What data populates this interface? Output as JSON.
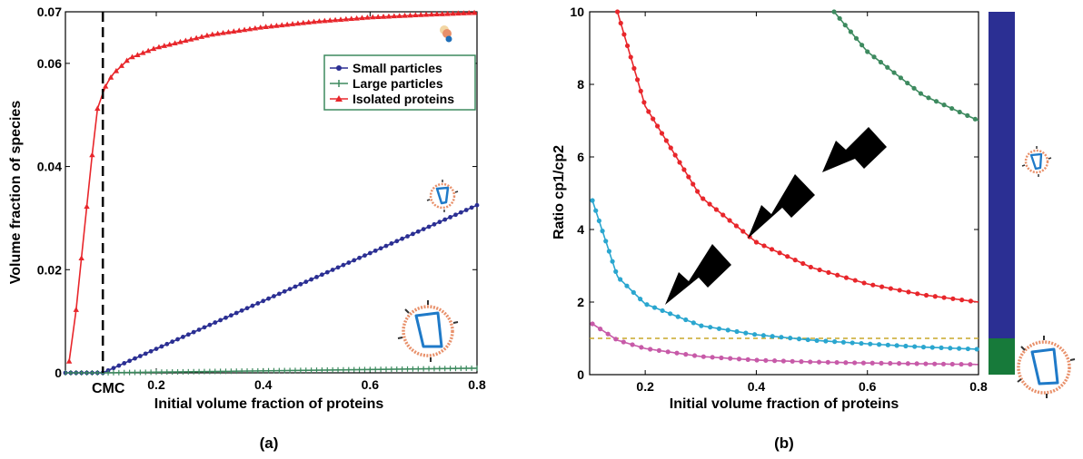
{
  "chart_data": [
    {
      "type": "line",
      "panel_label": "(a)",
      "xlabel": "Initial volume fraction of proteins",
      "ylabel": "Volume fraction of species",
      "xlim": [
        0.03,
        0.8
      ],
      "ylim": [
        0,
        0.07
      ],
      "xticks": [
        {
          "v": 0.2,
          "label": "0.2"
        },
        {
          "v": 0.4,
          "label": "0.4"
        },
        {
          "v": 0.6,
          "label": "0.6"
        },
        {
          "v": 0.8,
          "label": "0.8"
        }
      ],
      "yticks": [
        {
          "v": 0,
          "label": "0"
        },
        {
          "v": 0.02,
          "label": "0.02"
        },
        {
          "v": 0.04,
          "label": "0.04"
        },
        {
          "v": 0.06,
          "label": "0.06"
        },
        {
          "v": 0.07,
          "label": "0.07"
        }
      ],
      "cmc": {
        "x": 0.1,
        "label": "CMC"
      },
      "legend_position": "upper-right",
      "colors": {
        "small": "#2b2f93",
        "large": "#3d8a5f",
        "isolated": "#e8262b",
        "cmc": "#000000"
      },
      "series": [
        {
          "key": "small",
          "name": "Small particles",
          "x": [
            0.03,
            0.1,
            0.8
          ],
          "y": [
            0.0,
            0.0,
            0.0325
          ]
        },
        {
          "key": "large",
          "name": "Large particles",
          "x": [
            0.03,
            0.1,
            0.8
          ],
          "y": [
            0.0,
            0.0,
            0.0009
          ]
        },
        {
          "key": "isolated",
          "name": "Isolated proteins",
          "x": [
            0.037,
            0.05,
            0.06,
            0.07,
            0.08,
            0.09,
            0.1,
            0.105,
            0.11,
            0.12,
            0.13,
            0.15,
            0.2,
            0.3,
            0.4,
            0.5,
            0.6,
            0.7,
            0.8
          ],
          "y": [
            0.0022,
            0.0122,
            0.0222,
            0.0322,
            0.0422,
            0.0512,
            0.0542,
            0.0555,
            0.0565,
            0.058,
            0.059,
            0.061,
            0.063,
            0.0655,
            0.067,
            0.0681,
            0.0689,
            0.0694,
            0.0698
          ]
        }
      ]
    },
    {
      "type": "line",
      "panel_label": "(b)",
      "xlabel": "Initial volume fraction of proteins",
      "ylabel": "Ratio cp1/cp2",
      "xlim": [
        0.1,
        0.8
      ],
      "ylim": [
        0,
        10
      ],
      "xticks": [
        {
          "v": 0.2,
          "label": "0.2"
        },
        {
          "v": 0.4,
          "label": "0.4"
        },
        {
          "v": 0.6,
          "label": "0.6"
        },
        {
          "v": 0.8,
          "label": "0.8"
        }
      ],
      "yticks": [
        {
          "v": 0,
          "label": "0"
        },
        {
          "v": 2,
          "label": "2"
        },
        {
          "v": 4,
          "label": "4"
        },
        {
          "v": 6,
          "label": "6"
        },
        {
          "v": 8,
          "label": "8"
        },
        {
          "v": 10,
          "label": "10"
        }
      ],
      "reference_line_y": 1,
      "colors": {
        "s1": "#3d8a5f",
        "s2": "#e8262b",
        "s3": "#2aa6cf",
        "s4": "#c75aa8",
        "ref": "#c8a82a",
        "bar_upper": "#2b2f93",
        "bar_lower": "#177a3a",
        "arrow": "#000000"
      },
      "series": [
        {
          "key": "s1",
          "x": [
            0.54,
            0.6,
            0.7,
            0.8
          ],
          "y": [
            10.0,
            8.9,
            7.7,
            7.0
          ]
        },
        {
          "key": "s2",
          "x": [
            0.15,
            0.2,
            0.3,
            0.4,
            0.5,
            0.6,
            0.7,
            0.8
          ],
          "y": [
            10.0,
            7.4,
            4.9,
            3.65,
            2.95,
            2.5,
            2.2,
            2.0
          ]
        },
        {
          "key": "s3",
          "x": [
            0.105,
            0.15,
            0.2,
            0.3,
            0.4,
            0.5,
            0.6,
            0.7,
            0.8
          ],
          "y": [
            4.8,
            2.7,
            1.95,
            1.35,
            1.1,
            0.95,
            0.85,
            0.76,
            0.7
          ]
        },
        {
          "key": "s4",
          "x": [
            0.105,
            0.15,
            0.2,
            0.3,
            0.4,
            0.5,
            0.6,
            0.7,
            0.8
          ],
          "y": [
            1.4,
            0.95,
            0.72,
            0.5,
            0.4,
            0.35,
            0.32,
            0.3,
            0.28
          ]
        }
      ]
    }
  ]
}
